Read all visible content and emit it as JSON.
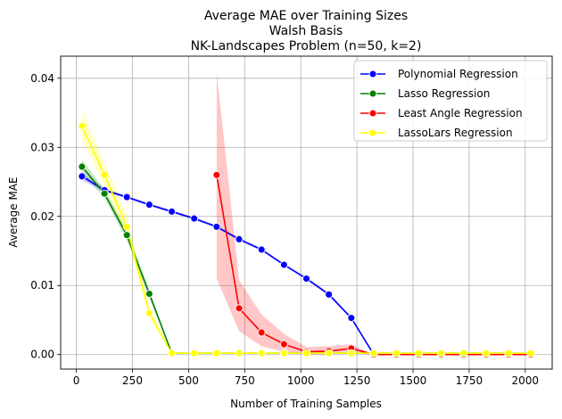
{
  "chart_data": {
    "type": "line",
    "title_lines": [
      "Average MAE over Training Sizes",
      "Walsh Basis",
      "NK-Landscapes Problem (n=50, k=2)"
    ],
    "xlabel": "Number of Training Samples",
    "ylabel": "Average MAE",
    "xlim": [
      -70,
      2120
    ],
    "ylim": [
      -0.0021,
      0.0432
    ],
    "xticks": [
      0,
      250,
      500,
      750,
      1000,
      1250,
      1500,
      1750,
      2000
    ],
    "xtick_labels": [
      "0",
      "250",
      "500",
      "750",
      "1000",
      "1250",
      "1500",
      "1750",
      "2000"
    ],
    "yticks": [
      0.0,
      0.01,
      0.02,
      0.03,
      0.04
    ],
    "ytick_labels": [
      "0.00",
      "0.01",
      "0.02",
      "0.03",
      "0.04"
    ],
    "grid": true,
    "legend_position": "upper right",
    "series": [
      {
        "name": "Polynomial Regression",
        "color": "#0000ff",
        "x": [
          25,
          125,
          225,
          325,
          425,
          525,
          625,
          725,
          825,
          925,
          1025,
          1125,
          1225,
          1325,
          1425,
          1525,
          1625,
          1725,
          1825,
          1925,
          2025
        ],
        "y": [
          0.0258,
          0.0238,
          0.0228,
          0.0217,
          0.0207,
          0.0197,
          0.0185,
          0.0167,
          0.0152,
          0.013,
          0.011,
          0.0087,
          0.0053,
          0.0,
          0.0,
          0.0,
          0.0,
          0.0,
          0.0,
          0.0,
          0.0
        ],
        "lower": [
          0.0253,
          0.0235,
          0.0226,
          0.0215,
          0.0205,
          0.0195,
          0.0183,
          0.0165,
          0.015,
          0.0128,
          0.0108,
          0.0085,
          0.0051,
          0.0,
          0.0,
          0.0,
          0.0,
          0.0,
          0.0,
          0.0,
          0.0
        ],
        "upper": [
          0.0263,
          0.0241,
          0.023,
          0.0219,
          0.0209,
          0.0199,
          0.0187,
          0.0169,
          0.0154,
          0.0132,
          0.0112,
          0.0089,
          0.0055,
          0.0,
          0.0,
          0.0,
          0.0,
          0.0,
          0.0,
          0.0,
          0.0
        ]
      },
      {
        "name": "Lasso Regression",
        "color": "#008000",
        "x": [
          25,
          125,
          225,
          325,
          425,
          525,
          625,
          725,
          825,
          925,
          1025,
          1125,
          1225,
          1325,
          1425,
          1525,
          1625,
          1725,
          1825,
          1925,
          2025
        ],
        "y": [
          0.0272,
          0.0233,
          0.0173,
          0.0088,
          0.0002,
          0.0002,
          0.0002,
          0.0002,
          0.0002,
          0.0002,
          0.0002,
          0.0002,
          0.0002,
          0.0002,
          0.0002,
          0.0002,
          0.0002,
          0.0002,
          0.0002,
          0.0002,
          0.0002
        ],
        "lower": [
          0.0262,
          0.0227,
          0.0165,
          0.0082,
          0.0002,
          0.0002,
          0.0002,
          0.0002,
          0.0002,
          0.0002,
          0.0002,
          0.0002,
          0.0002,
          0.0002,
          0.0002,
          0.0002,
          0.0002,
          0.0002,
          0.0002,
          0.0002,
          0.0002
        ],
        "upper": [
          0.0282,
          0.0239,
          0.0181,
          0.0094,
          0.0002,
          0.0002,
          0.0002,
          0.0002,
          0.0002,
          0.0002,
          0.0002,
          0.0002,
          0.0002,
          0.0002,
          0.0002,
          0.0002,
          0.0002,
          0.0002,
          0.0002,
          0.0002,
          0.0002
        ]
      },
      {
        "name": "Least Angle Regression",
        "color": "#ff0000",
        "x": [
          625,
          725,
          825,
          925,
          1025,
          1125,
          1225,
          1325,
          1425,
          1525,
          1625,
          1725,
          1825,
          1925,
          2025
        ],
        "y": [
          0.026,
          0.0067,
          0.0032,
          0.0015,
          0.0004,
          0.0005,
          0.0009,
          0.0,
          0.0,
          0.0,
          0.0,
          0.0,
          0.0,
          0.0,
          0.0
        ],
        "lower": [
          0.011,
          0.0034,
          0.0012,
          0.0004,
          0.0,
          0.0,
          0.0002,
          0.0,
          0.0,
          0.0,
          0.0,
          0.0,
          0.0,
          0.0,
          0.0
        ],
        "upper": [
          0.041,
          0.0108,
          0.0058,
          0.003,
          0.0011,
          0.0012,
          0.0015,
          0.0,
          0.0,
          0.0,
          0.0,
          0.0,
          0.0,
          0.0,
          0.0
        ]
      },
      {
        "name": "LassoLars Regression",
        "color": "#ffff00",
        "x": [
          25,
          125,
          225,
          325,
          425,
          525,
          625,
          725,
          825,
          925,
          1025,
          1125,
          1225,
          1325,
          1425,
          1525,
          1625,
          1725,
          1825,
          1925,
          2025
        ],
        "y": [
          0.0331,
          0.026,
          0.0185,
          0.006,
          0.0002,
          0.0002,
          0.0002,
          0.0002,
          0.0002,
          0.0002,
          0.0002,
          0.0002,
          0.0002,
          0.0002,
          0.0002,
          0.0002,
          0.0002,
          0.0002,
          0.0002,
          0.0002,
          0.0002
        ],
        "lower": [
          0.031,
          0.0245,
          0.017,
          0.0052,
          0.0002,
          0.0002,
          0.0002,
          0.0002,
          0.0002,
          0.0002,
          0.0002,
          0.0002,
          0.0002,
          0.0002,
          0.0002,
          0.0002,
          0.0002,
          0.0002,
          0.0002,
          0.0002,
          0.0002
        ],
        "upper": [
          0.0355,
          0.0278,
          0.0202,
          0.0068,
          0.0002,
          0.0002,
          0.0002,
          0.0002,
          0.0002,
          0.0002,
          0.0002,
          0.0002,
          0.0002,
          0.0002,
          0.0002,
          0.0002,
          0.0002,
          0.0002,
          0.0002,
          0.0002,
          0.0002
        ]
      }
    ]
  }
}
